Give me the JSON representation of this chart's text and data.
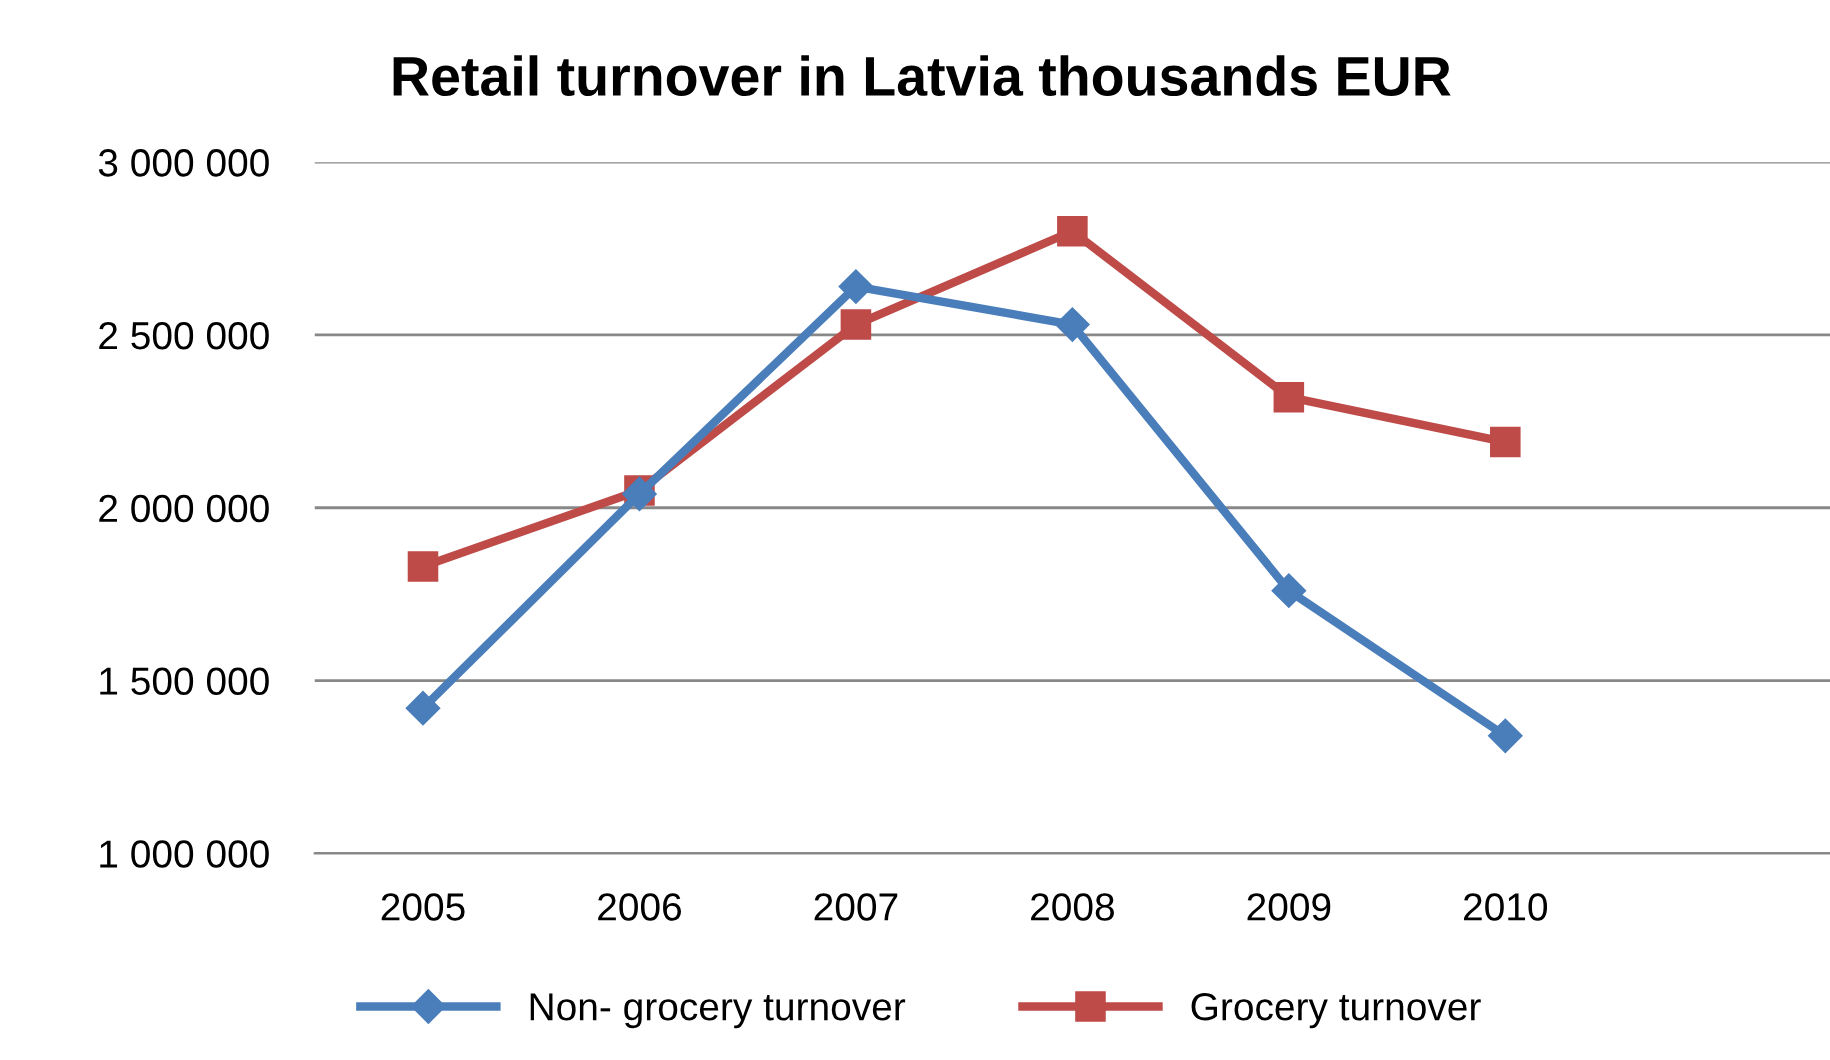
{
  "chart_data": {
    "type": "line",
    "title": "Retail turnover in Latvia thousands EUR",
    "categories": [
      "2005",
      "2006",
      "2007",
      "2008",
      "2009",
      "2010",
      null
    ],
    "series": [
      {
        "name": "Non- grocery turnover",
        "color": "#4a7ebb",
        "marker": "diamond",
        "values": [
          1420000,
          2040000,
          2640000,
          2530000,
          1760000,
          1340000,
          null
        ]
      },
      {
        "name": "Grocery turnover",
        "color": "#be4b48",
        "marker": "square",
        "values": [
          1830000,
          2050000,
          2530000,
          2800000,
          2320000,
          2190000,
          null
        ]
      }
    ],
    "ylim": [
      1000000,
      3000000
    ],
    "yticks": [
      {
        "value": 1000000,
        "label": "1 000 000"
      },
      {
        "value": 1500000,
        "label": "1 500 000"
      },
      {
        "value": 2000000,
        "label": "2 000 000"
      },
      {
        "value": 2500000,
        "label": "2 500 000"
      },
      {
        "value": 3000000,
        "label": "3 000 000"
      }
    ],
    "grid": "y",
    "legend": "bottom",
    "line_style": "solid"
  }
}
